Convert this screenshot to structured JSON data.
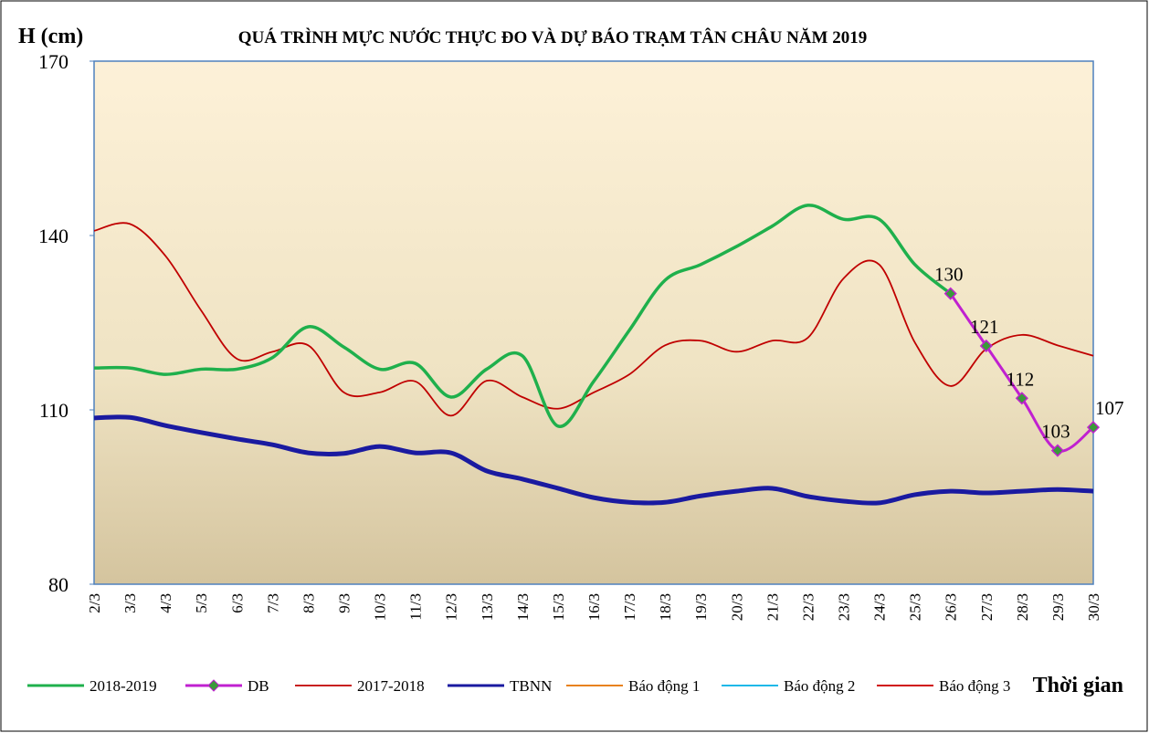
{
  "chart_data": {
    "type": "line",
    "title": "QUÁ TRÌNH MỰC NƯỚC THỰC ĐO VÀ DỰ BÁO TRẠM TÂN CHÂU NĂM 2019",
    "y_label": "H (cm)",
    "x_label": "Thời gian",
    "categories": [
      "2/3",
      "3/3",
      "4/3",
      "5/3",
      "6/3",
      "7/3",
      "8/3",
      "9/3",
      "10/3",
      "11/3",
      "12/3",
      "13/3",
      "14/3",
      "15/3",
      "16/3",
      "17/3",
      "18/3",
      "19/3",
      "20/3",
      "21/3",
      "22/3",
      "23/3",
      "24/3",
      "25/3",
      "26/3",
      "27/3",
      "28/3",
      "29/3",
      "30/3"
    ],
    "ylim": [
      80,
      170
    ],
    "yticks": [
      80,
      110,
      140,
      170
    ],
    "grid": false,
    "series": [
      {
        "name": "2018-2019",
        "color": "#1fb04c",
        "width": 3.5,
        "values": [
          117.2,
          117.2,
          116.1,
          117,
          117,
          119,
          124.3,
          120.8,
          117,
          118,
          112.2,
          117,
          119.3,
          107.2,
          114.9,
          123.7,
          132.3,
          135,
          138.1,
          141.6,
          145.2,
          142.8,
          142.8,
          135,
          130,
          null,
          null,
          null,
          null
        ]
      },
      {
        "name": "DB",
        "color": "#c020d0",
        "width": 3,
        "marker": "diamond",
        "marker_color": "#3a9a3a",
        "values": [
          null,
          null,
          null,
          null,
          null,
          null,
          null,
          null,
          null,
          null,
          null,
          null,
          null,
          null,
          null,
          null,
          null,
          null,
          null,
          null,
          null,
          null,
          null,
          null,
          130,
          121,
          112,
          103,
          107
        ]
      },
      {
        "name": "2017-2018",
        "color": "#c00000",
        "width": 1.8,
        "values": [
          140.8,
          142,
          136.5,
          127.1,
          118.8,
          120,
          121.1,
          113,
          113,
          114.9,
          109,
          115,
          112.2,
          110.2,
          113,
          116.1,
          121.1,
          121.9,
          120,
          121.9,
          122.4,
          132.6,
          135,
          121.6,
          114.1,
          120.5,
          122.9,
          121.1,
          119.3
        ]
      },
      {
        "name": "TBNN",
        "color": "#1a1aa0",
        "width": 5,
        "values": [
          108.6,
          108.7,
          107.3,
          106.1,
          105,
          104,
          102.6,
          102.5,
          103.7,
          102.6,
          102.6,
          99.5,
          98.1,
          96.5,
          94.9,
          94.1,
          94.1,
          95.2,
          96,
          96.5,
          95.1,
          94.3,
          94,
          95.4,
          96,
          95.7,
          96,
          96.3,
          96
        ]
      },
      {
        "name": "Báo động 1",
        "color": "#e8821e",
        "width": 2,
        "values": [
          null,
          null,
          null,
          null,
          null,
          null,
          null,
          null,
          null,
          null,
          null,
          null,
          null,
          null,
          null,
          null,
          null,
          null,
          null,
          null,
          null,
          null,
          null,
          null,
          null,
          null,
          null,
          null,
          null
        ]
      },
      {
        "name": "Báo động 2",
        "color": "#1fb8e8",
        "width": 2,
        "values": [
          null,
          null,
          null,
          null,
          null,
          null,
          null,
          null,
          null,
          null,
          null,
          null,
          null,
          null,
          null,
          null,
          null,
          null,
          null,
          null,
          null,
          null,
          null,
          null,
          null,
          null,
          null,
          null,
          null
        ]
      },
      {
        "name": "Báo động 3",
        "color": "#d01010",
        "width": 2,
        "values": [
          null,
          null,
          null,
          null,
          null,
          null,
          null,
          null,
          null,
          null,
          null,
          null,
          null,
          null,
          null,
          null,
          null,
          null,
          null,
          null,
          null,
          null,
          null,
          null,
          null,
          null,
          null,
          null,
          null
        ]
      }
    ],
    "data_labels_series": 1
  }
}
